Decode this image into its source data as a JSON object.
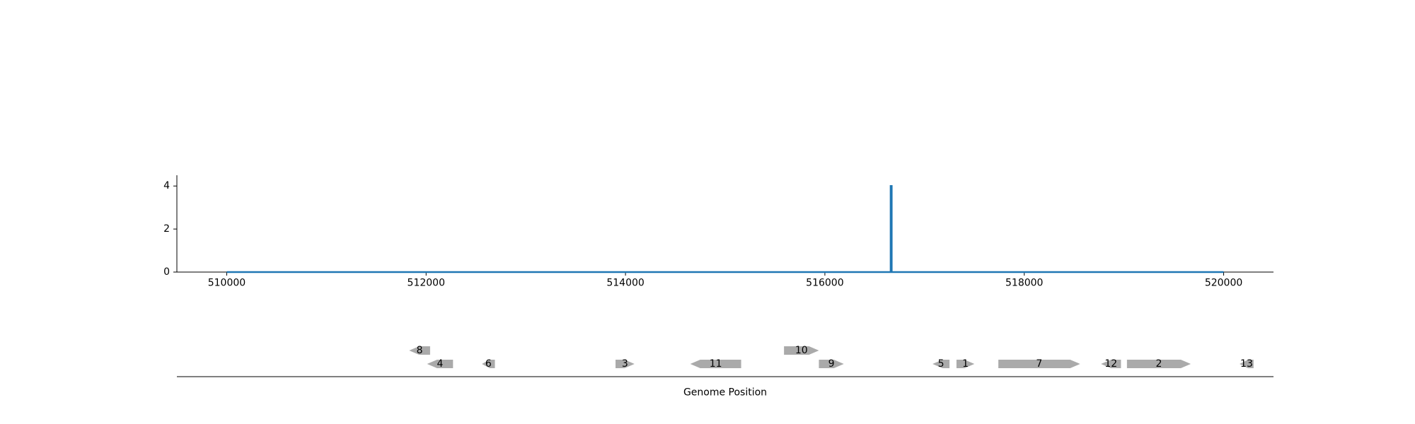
{
  "chart_data": [
    {
      "type": "line",
      "title": "",
      "xlabel": "",
      "ylabel": "",
      "xlim": [
        509500,
        520500
      ],
      "ylim": [
        0,
        4.5
      ],
      "xticks": [
        510000,
        512000,
        514000,
        516000,
        518000,
        520000
      ],
      "xtick_labels": [
        "510000",
        "512000",
        "514000",
        "516000",
        "518000",
        "520000"
      ],
      "yticks": [
        0,
        2,
        4
      ],
      "ytick_labels": [
        "0",
        "2",
        "4"
      ],
      "grid": false,
      "legend": "none",
      "series_color": "#1f77b4",
      "series": [
        {
          "x": [
            510000,
            516660,
            516660,
            516670,
            516670,
            520000
          ],
          "y": [
            0,
            0,
            4,
            4,
            0,
            0
          ]
        }
      ]
    },
    {
      "type": "gene-track",
      "xlabel": "Genome Position",
      "xlim": [
        509500,
        520500
      ],
      "gene_color": "#aaaaaa",
      "genes": [
        {
          "label": "8",
          "start": 511830,
          "end": 512040,
          "strand": "-",
          "row": 1
        },
        {
          "label": "4",
          "start": 512010,
          "end": 512270,
          "strand": "-",
          "row": 0
        },
        {
          "label": "6",
          "start": 512560,
          "end": 512690,
          "strand": "-",
          "row": 0
        },
        {
          "label": "3",
          "start": 513900,
          "end": 514090,
          "strand": "+",
          "row": 0
        },
        {
          "label": "11",
          "start": 514650,
          "end": 515160,
          "strand": "-",
          "row": 0
        },
        {
          "label": "10",
          "start": 515590,
          "end": 515940,
          "strand": "+",
          "row": 1
        },
        {
          "label": "9",
          "start": 515940,
          "end": 516190,
          "strand": "+",
          "row": 0
        },
        {
          "label": "5",
          "start": 517080,
          "end": 517250,
          "strand": "-",
          "row": 0
        },
        {
          "label": "1",
          "start": 517320,
          "end": 517500,
          "strand": "+",
          "row": 0
        },
        {
          "label": "7",
          "start": 517740,
          "end": 518560,
          "strand": "+",
          "row": 0
        },
        {
          "label": "12",
          "start": 518770,
          "end": 518970,
          "strand": "-",
          "row": 0
        },
        {
          "label": "2",
          "start": 519030,
          "end": 519670,
          "strand": "+",
          "row": 0
        },
        {
          "label": "13",
          "start": 520160,
          "end": 520300,
          "strand": "-",
          "row": 0
        }
      ]
    }
  ]
}
